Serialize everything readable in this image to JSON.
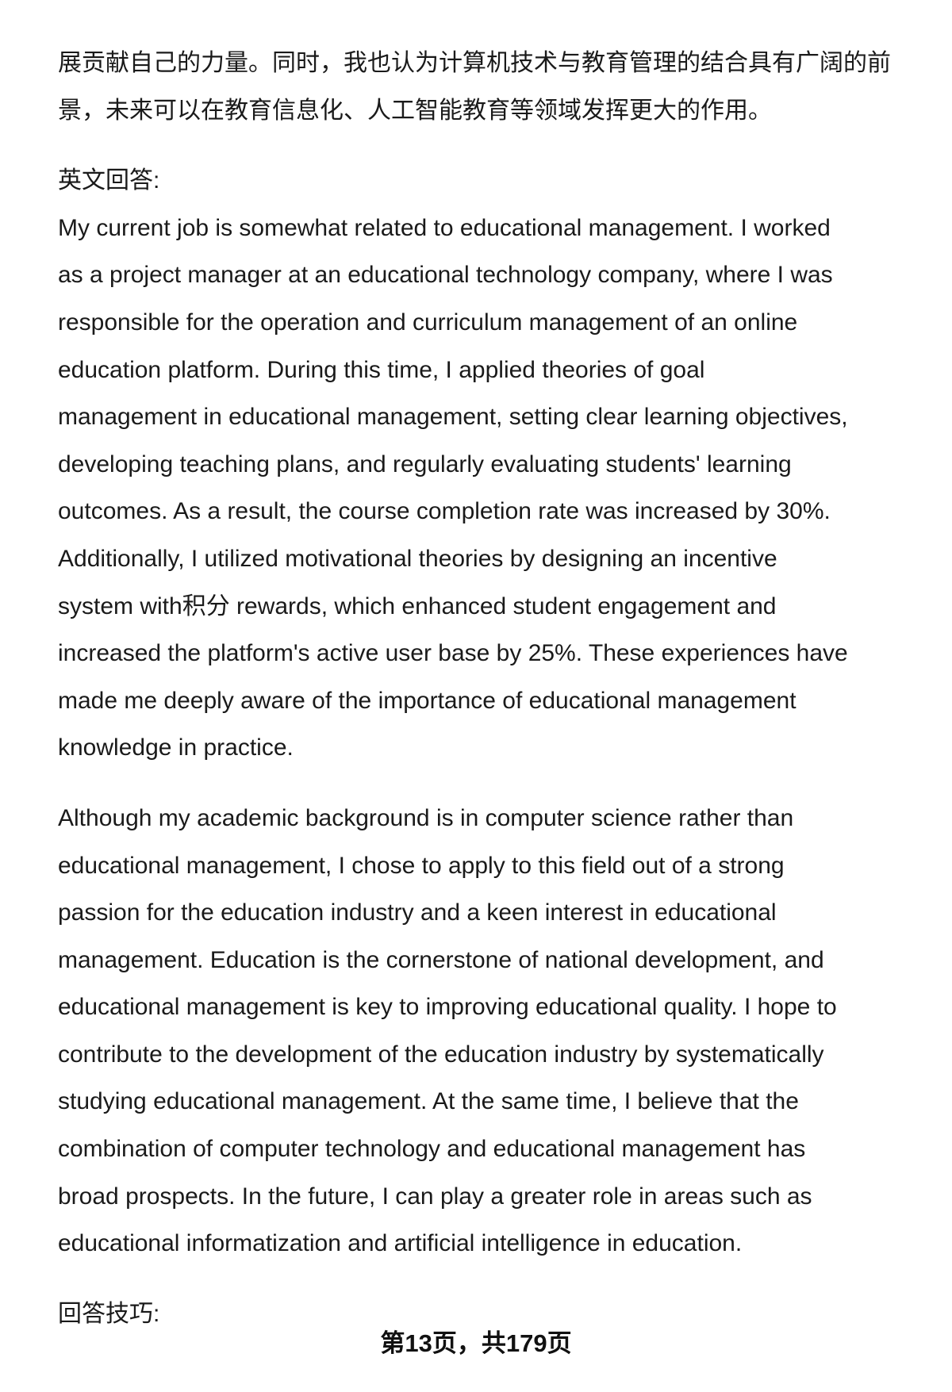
{
  "blocks": [
    {
      "lines": [
        "展贡献自己的力量。同时，我也认为计算机技术与教育管理的结合具有广阔的前",
        "景，未来可以在教育信息化、人工智能教育等领域发挥更大的作用。"
      ]
    },
    {
      "lines": [
        "英文回答:",
        "My current job is somewhat related to educational management. I worked",
        "as a project manager at an educational technology company, where I was",
        "responsible for the operation and curriculum management of an online",
        "education platform. During this time, I applied theories of goal",
        "management in educational management, setting clear learning objectives,",
        "developing teaching plans, and regularly evaluating students' learning",
        "outcomes. As a result, the course completion rate was increased by 30%.",
        "Additionally, I utilized motivational theories by designing an incentive",
        "system with积分 rewards, which enhanced student engagement and",
        "increased the platform's active user base by 25%. These experiences have",
        "made me deeply aware of the importance of educational management",
        "knowledge in practice."
      ]
    },
    {
      "lines": [
        "Although my academic background is in computer science rather than",
        "educational management, I chose to apply to this field out of a strong",
        "passion for the education industry and a keen interest in educational",
        "management. Education is the cornerstone of national development, and",
        "educational management is key to improving educational quality. I hope to",
        "contribute to the development of the education industry by systematically",
        "studying educational management. At the same time, I believe that the",
        "combination of computer technology and educational management has",
        "broad prospects. In the future, I can play a greater role in areas such as",
        "educational informatization and artificial intelligence in education."
      ]
    },
    {
      "lines": [
        "回答技巧:"
      ]
    }
  ],
  "footer": "第13页，共179页"
}
